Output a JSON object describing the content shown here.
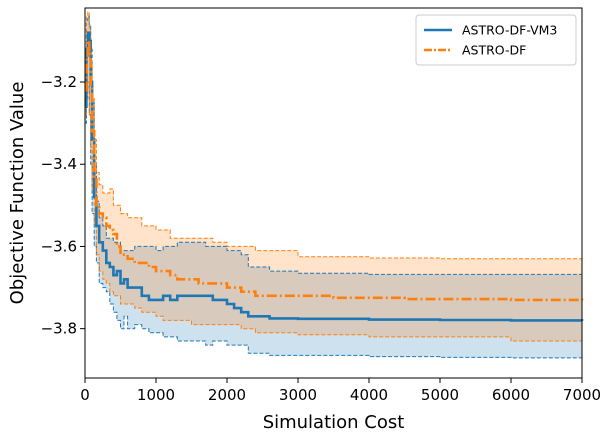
{
  "chart_data": {
    "type": "line",
    "title": "",
    "xlabel": "Simulation Cost",
    "ylabel": "Objective Function Value",
    "xlim": [
      0,
      7000
    ],
    "ylim": [
      -3.92,
      -3.02
    ],
    "xticks": [
      0,
      1000,
      2000,
      3000,
      4000,
      5000,
      6000,
      7000
    ],
    "xtick_labels": [
      "0",
      "1000",
      "2000",
      "3000",
      "4000",
      "5000",
      "6000",
      "7000"
    ],
    "yticks": [
      -3.8,
      -3.6,
      -3.4,
      -3.2
    ],
    "ytick_labels": [
      "−3.8",
      "−3.6",
      "−3.4",
      "−3.2"
    ],
    "grid": false,
    "legend": {
      "position": "top-right",
      "entries": [
        "ASTRO-DF-VM3",
        "ASTRO-DF"
      ]
    },
    "series": [
      {
        "name": "ASTRO-DF-VM3",
        "color": "#1f77b4",
        "line_style": "solid",
        "mean": [
          [
            0,
            -3.26
          ],
          [
            20,
            -3.12
          ],
          [
            40,
            -3.08
          ],
          [
            60,
            -3.1
          ],
          [
            80,
            -3.2
          ],
          [
            100,
            -3.34
          ],
          [
            130,
            -3.48
          ],
          [
            160,
            -3.55
          ],
          [
            200,
            -3.59
          ],
          [
            250,
            -3.61
          ],
          [
            300,
            -3.64
          ],
          [
            350,
            -3.65
          ],
          [
            400,
            -3.67
          ],
          [
            450,
            -3.66
          ],
          [
            500,
            -3.69
          ],
          [
            550,
            -3.68
          ],
          [
            600,
            -3.7
          ],
          [
            700,
            -3.7
          ],
          [
            800,
            -3.72
          ],
          [
            900,
            -3.73
          ],
          [
            1000,
            -3.73
          ],
          [
            1100,
            -3.72
          ],
          [
            1200,
            -3.73
          ],
          [
            1300,
            -3.72
          ],
          [
            1500,
            -3.72
          ],
          [
            1700,
            -3.72
          ],
          [
            1800,
            -3.73
          ],
          [
            2000,
            -3.74
          ],
          [
            2100,
            -3.75
          ],
          [
            2200,
            -3.76
          ],
          [
            2300,
            -3.77
          ],
          [
            2600,
            -3.775
          ],
          [
            3000,
            -3.776
          ],
          [
            4000,
            -3.778
          ],
          [
            5000,
            -3.779
          ],
          [
            6000,
            -3.78
          ],
          [
            7000,
            -3.781
          ]
        ],
        "upper": [
          [
            0,
            -3.12
          ],
          [
            20,
            -3.05
          ],
          [
            40,
            -3.04
          ],
          [
            60,
            -3.06
          ],
          [
            80,
            -3.12
          ],
          [
            100,
            -3.25
          ],
          [
            130,
            -3.4
          ],
          [
            160,
            -3.49
          ],
          [
            200,
            -3.53
          ],
          [
            250,
            -3.55
          ],
          [
            300,
            -3.58
          ],
          [
            400,
            -3.59
          ],
          [
            500,
            -3.61
          ],
          [
            600,
            -3.61
          ],
          [
            700,
            -3.6
          ],
          [
            800,
            -3.6
          ],
          [
            1000,
            -3.61
          ],
          [
            1100,
            -3.6
          ],
          [
            1200,
            -3.6
          ],
          [
            1300,
            -3.59
          ],
          [
            1500,
            -3.59
          ],
          [
            1700,
            -3.6
          ],
          [
            1800,
            -3.6
          ],
          [
            2000,
            -3.61
          ],
          [
            2200,
            -3.62
          ],
          [
            2300,
            -3.65
          ],
          [
            2600,
            -3.66
          ],
          [
            3000,
            -3.665
          ],
          [
            4000,
            -3.668
          ],
          [
            5000,
            -3.668
          ],
          [
            6000,
            -3.668
          ],
          [
            7000,
            -3.668
          ]
        ],
        "lower": [
          [
            0,
            -3.3
          ],
          [
            20,
            -3.22
          ],
          [
            40,
            -3.2
          ],
          [
            60,
            -3.28
          ],
          [
            80,
            -3.4
          ],
          [
            100,
            -3.52
          ],
          [
            130,
            -3.6
          ],
          [
            160,
            -3.64
          ],
          [
            200,
            -3.69
          ],
          [
            250,
            -3.7
          ],
          [
            300,
            -3.71
          ],
          [
            350,
            -3.74
          ],
          [
            400,
            -3.76
          ],
          [
            450,
            -3.78
          ],
          [
            500,
            -3.8
          ],
          [
            550,
            -3.77
          ],
          [
            600,
            -3.8
          ],
          [
            700,
            -3.79
          ],
          [
            800,
            -3.8
          ],
          [
            900,
            -3.81
          ],
          [
            1000,
            -3.81
          ],
          [
            1100,
            -3.82
          ],
          [
            1200,
            -3.82
          ],
          [
            1300,
            -3.83
          ],
          [
            1500,
            -3.83
          ],
          [
            1700,
            -3.84
          ],
          [
            1800,
            -3.83
          ],
          [
            2000,
            -3.84
          ],
          [
            2200,
            -3.84
          ],
          [
            2300,
            -3.86
          ],
          [
            2600,
            -3.865
          ],
          [
            3000,
            -3.865
          ],
          [
            4000,
            -3.868
          ],
          [
            5000,
            -3.87
          ],
          [
            6000,
            -3.871
          ],
          [
            7000,
            -3.871
          ]
        ]
      },
      {
        "name": "ASTRO-DF",
        "color": "#ff7f0e",
        "line_style": "dashdot",
        "mean": [
          [
            0,
            -3.22
          ],
          [
            20,
            -3.14
          ],
          [
            40,
            -3.1
          ],
          [
            60,
            -3.13
          ],
          [
            80,
            -3.21
          ],
          [
            100,
            -3.32
          ],
          [
            130,
            -3.43
          ],
          [
            160,
            -3.5
          ],
          [
            200,
            -3.52
          ],
          [
            250,
            -3.53
          ],
          [
            300,
            -3.55
          ],
          [
            350,
            -3.56
          ],
          [
            400,
            -3.57
          ],
          [
            450,
            -3.6
          ],
          [
            500,
            -3.62
          ],
          [
            600,
            -3.63
          ],
          [
            700,
            -3.64
          ],
          [
            800,
            -3.64
          ],
          [
            900,
            -3.65
          ],
          [
            1000,
            -3.66
          ],
          [
            1100,
            -3.66
          ],
          [
            1200,
            -3.67
          ],
          [
            1300,
            -3.68
          ],
          [
            1500,
            -3.68
          ],
          [
            1600,
            -3.69
          ],
          [
            1800,
            -3.69
          ],
          [
            2000,
            -3.7
          ],
          [
            2100,
            -3.7
          ],
          [
            2200,
            -3.71
          ],
          [
            2400,
            -3.72
          ],
          [
            3000,
            -3.72
          ],
          [
            3500,
            -3.725
          ],
          [
            4000,
            -3.725
          ],
          [
            4500,
            -3.728
          ],
          [
            5000,
            -3.728
          ],
          [
            6000,
            -3.73
          ],
          [
            7000,
            -3.731
          ]
        ],
        "upper": [
          [
            0,
            -3.12
          ],
          [
            20,
            -3.04
          ],
          [
            40,
            -3.03
          ],
          [
            60,
            -3.07
          ],
          [
            80,
            -3.15
          ],
          [
            100,
            -3.24
          ],
          [
            130,
            -3.34
          ],
          [
            160,
            -3.42
          ],
          [
            200,
            -3.45
          ],
          [
            250,
            -3.47
          ],
          [
            300,
            -3.47
          ],
          [
            350,
            -3.46
          ],
          [
            400,
            -3.5
          ],
          [
            500,
            -3.52
          ],
          [
            600,
            -3.53
          ],
          [
            700,
            -3.53
          ],
          [
            800,
            -3.55
          ],
          [
            1000,
            -3.56
          ],
          [
            1100,
            -3.56
          ],
          [
            1200,
            -3.58
          ],
          [
            1300,
            -3.58
          ],
          [
            1500,
            -3.58
          ],
          [
            1800,
            -3.59
          ],
          [
            2000,
            -3.6
          ],
          [
            2200,
            -3.6
          ],
          [
            2400,
            -3.61
          ],
          [
            3000,
            -3.625
          ],
          [
            4000,
            -3.628
          ],
          [
            5000,
            -3.63
          ],
          [
            6000,
            -3.63
          ],
          [
            7000,
            -3.631
          ]
        ],
        "lower": [
          [
            0,
            -3.28
          ],
          [
            20,
            -3.24
          ],
          [
            40,
            -3.2
          ],
          [
            60,
            -3.28
          ],
          [
            80,
            -3.36
          ],
          [
            100,
            -3.46
          ],
          [
            130,
            -3.55
          ],
          [
            160,
            -3.62
          ],
          [
            200,
            -3.66
          ],
          [
            250,
            -3.68
          ],
          [
            300,
            -3.69
          ],
          [
            350,
            -3.71
          ],
          [
            400,
            -3.72
          ],
          [
            500,
            -3.74
          ],
          [
            600,
            -3.74
          ],
          [
            700,
            -3.75
          ],
          [
            800,
            -3.76
          ],
          [
            1000,
            -3.77
          ],
          [
            1100,
            -3.78
          ],
          [
            1200,
            -3.78
          ],
          [
            1300,
            -3.78
          ],
          [
            1500,
            -3.79
          ],
          [
            1800,
            -3.79
          ],
          [
            2000,
            -3.79
          ],
          [
            2200,
            -3.8
          ],
          [
            2400,
            -3.81
          ],
          [
            3000,
            -3.815
          ],
          [
            4000,
            -3.82
          ],
          [
            5000,
            -3.82
          ],
          [
            6000,
            -3.83
          ],
          [
            7000,
            -3.831
          ]
        ]
      }
    ]
  }
}
